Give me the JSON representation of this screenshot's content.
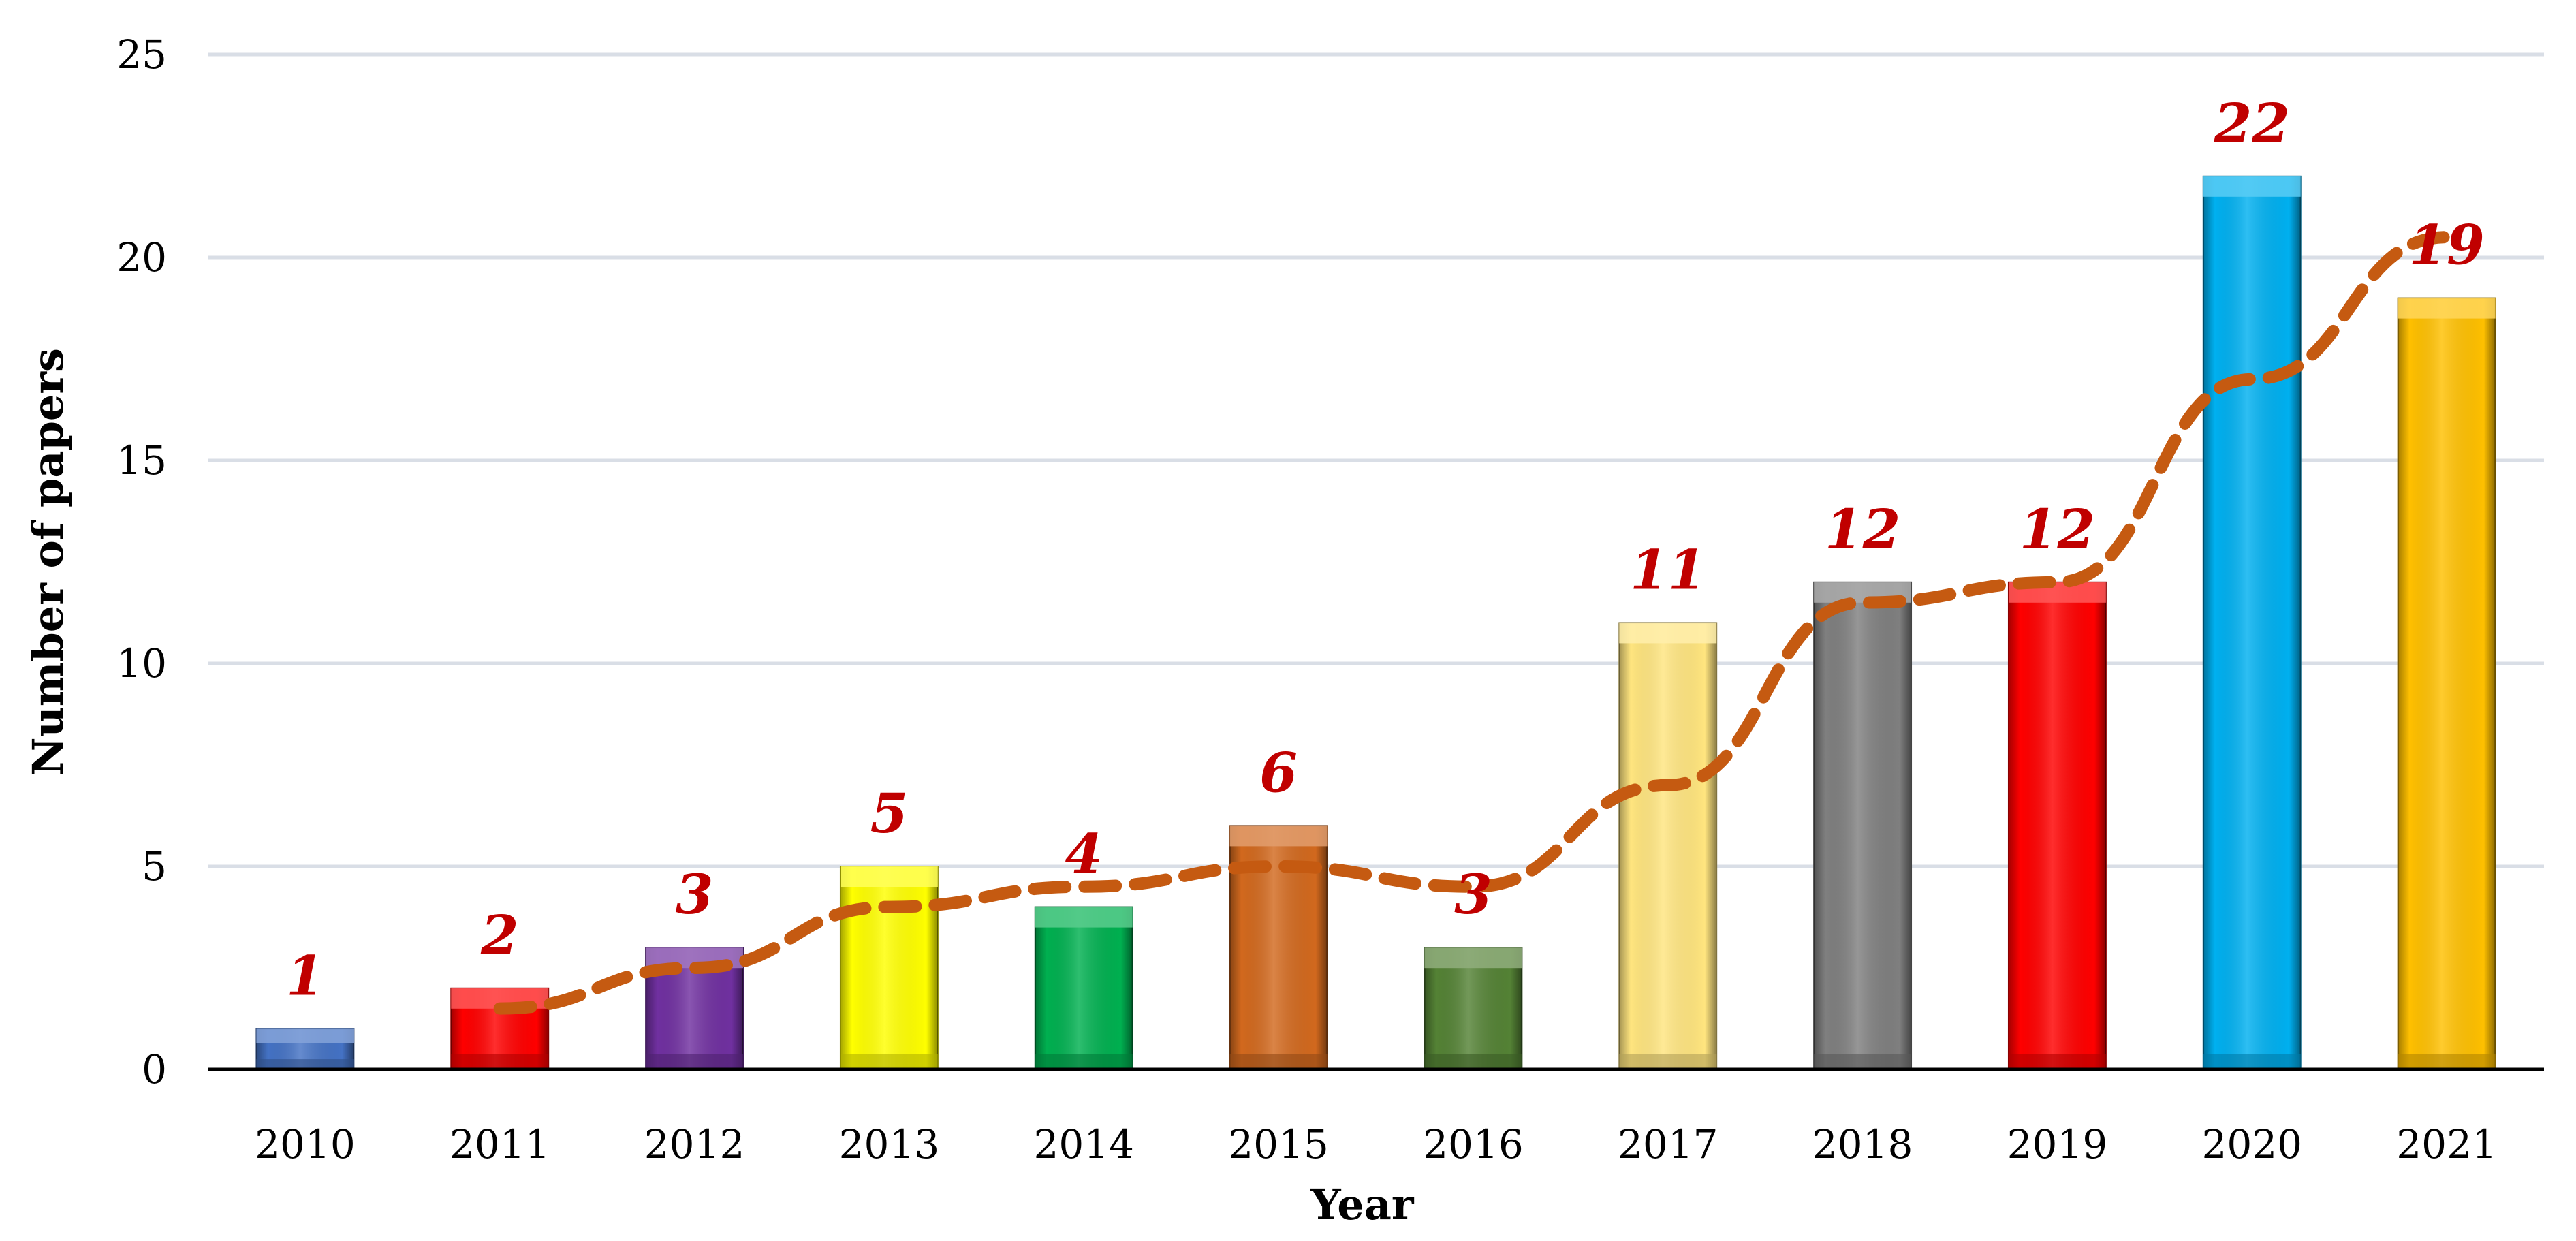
{
  "chart_data": {
    "type": "bar",
    "title": "",
    "xlabel": "Year",
    "ylabel": "Number of papers",
    "categories": [
      "2010",
      "2011",
      "2012",
      "2013",
      "2014",
      "2015",
      "2016",
      "2017",
      "2018",
      "2019",
      "2020",
      "2021"
    ],
    "values": [
      1,
      2,
      3,
      5,
      4,
      6,
      3,
      11,
      12,
      12,
      22,
      19
    ],
    "bar_colors": [
      "#4472C4",
      "#FF0000",
      "#7030A0",
      "#FFFF00",
      "#00B050",
      "#D2691E",
      "#548235",
      "#FFE57F",
      "#7F7F7F",
      "#FF0000",
      "#00B0F0",
      "#FFC000"
    ],
    "trend": {
      "style": "dashed",
      "color": "#C55A11",
      "x": [
        "2011",
        "2012",
        "2013",
        "2014",
        "2015",
        "2016",
        "2017",
        "2018",
        "2019",
        "2020",
        "2021"
      ],
      "values": [
        1.5,
        2.5,
        4.0,
        4.5,
        5.0,
        4.5,
        7.0,
        11.5,
        12.0,
        17.0,
        20.5
      ]
    },
    "label_color": "#C00000",
    "ylim": [
      0,
      25
    ],
    "yticks": [
      0,
      5,
      10,
      15,
      20,
      25
    ],
    "grid": true,
    "legend": "none"
  }
}
